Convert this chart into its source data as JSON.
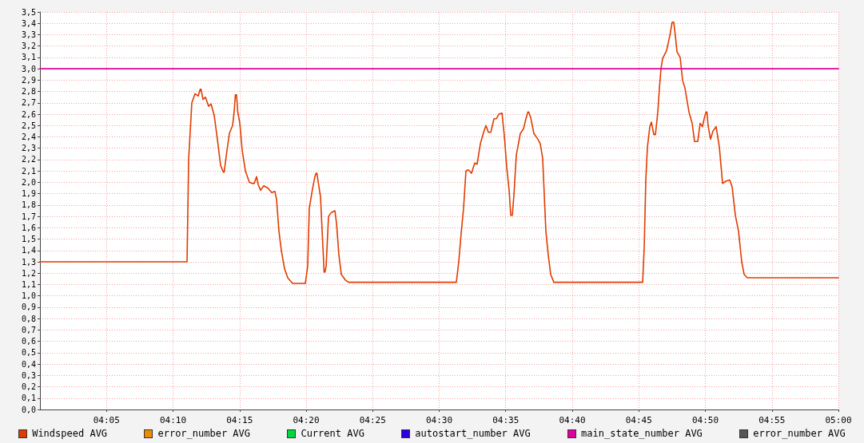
{
  "chart_data": {
    "type": "line",
    "xlim": [
      4.0,
      5.0
    ],
    "ylim": [
      0,
      3.5
    ],
    "xticks": [
      {
        "value": 4.0833,
        "label": "04:05"
      },
      {
        "value": 4.1667,
        "label": "04:10"
      },
      {
        "value": 4.25,
        "label": "04:15"
      },
      {
        "value": 4.3333,
        "label": "04:20"
      },
      {
        "value": 4.4167,
        "label": "04:25"
      },
      {
        "value": 4.5,
        "label": "04:30"
      },
      {
        "value": 4.5833,
        "label": "04:35"
      },
      {
        "value": 4.6667,
        "label": "04:40"
      },
      {
        "value": 4.75,
        "label": "04:45"
      },
      {
        "value": 4.8333,
        "label": "04:50"
      },
      {
        "value": 4.9167,
        "label": "04:55"
      },
      {
        "value": 5.0,
        "label": "05:00"
      }
    ],
    "yticks": [
      {
        "value": 0,
        "label": "0,0"
      },
      {
        "value": 0.1,
        "label": "0,1"
      },
      {
        "value": 0.2,
        "label": "0,2"
      },
      {
        "value": 0.3,
        "label": "0,3"
      },
      {
        "value": 0.4,
        "label": "0,4"
      },
      {
        "value": 0.5,
        "label": "0,5"
      },
      {
        "value": 0.6,
        "label": "0,6"
      },
      {
        "value": 0.7,
        "label": "0,7"
      },
      {
        "value": 0.8,
        "label": "0,8"
      },
      {
        "value": 0.9,
        "label": "0,9"
      },
      {
        "value": 1.0,
        "label": "1,0"
      },
      {
        "value": 1.1,
        "label": "1,1"
      },
      {
        "value": 1.2,
        "label": "1,2"
      },
      {
        "value": 1.3,
        "label": "1,3"
      },
      {
        "value": 1.4,
        "label": "1,4"
      },
      {
        "value": 1.5,
        "label": "1,5"
      },
      {
        "value": 1.6,
        "label": "1,6"
      },
      {
        "value": 1.7,
        "label": "1,7"
      },
      {
        "value": 1.8,
        "label": "1,8"
      },
      {
        "value": 1.9,
        "label": "1,9"
      },
      {
        "value": 2.0,
        "label": "2,0"
      },
      {
        "value": 2.1,
        "label": "2,1"
      },
      {
        "value": 2.2,
        "label": "2,2"
      },
      {
        "value": 2.3,
        "label": "2,3"
      },
      {
        "value": 2.4,
        "label": "2,4"
      },
      {
        "value": 2.5,
        "label": "2,5"
      },
      {
        "value": 2.6,
        "label": "2,6"
      },
      {
        "value": 2.7,
        "label": "2,7"
      },
      {
        "value": 2.8,
        "label": "2,8"
      },
      {
        "value": 2.9,
        "label": "2,9"
      },
      {
        "value": 3.0,
        "label": "3,0"
      },
      {
        "value": 3.1,
        "label": "3,1"
      },
      {
        "value": 3.2,
        "label": "3,2"
      },
      {
        "value": 3.3,
        "label": "3,3"
      },
      {
        "value": 3.4,
        "label": "3,4"
      },
      {
        "value": 3.5,
        "label": "3,5"
      }
    ],
    "grid": true,
    "legend": "bottom",
    "marker": "none",
    "line_style": "solid",
    "series": [
      {
        "name": "Windspeed AVG",
        "color": "#e03c00",
        "x": [
          4.0,
          4.1842,
          4.1862,
          4.1902,
          4.1942,
          4.1982,
          4.2007,
          4.2017,
          4.2042,
          4.2072,
          4.2112,
          4.2142,
          4.2182,
          4.2222,
          4.2262,
          4.2297,
          4.2307,
          4.2342,
          4.2372,
          4.2412,
          4.2432,
          4.2447,
          4.2462,
          4.2477,
          4.2503,
          4.2533,
          4.2573,
          4.2623,
          4.2663,
          4.2683,
          4.2713,
          4.2733,
          4.2763,
          4.2803,
          4.2853,
          4.2903,
          4.2943,
          4.2963,
          4.2993,
          4.3023,
          4.3063,
          4.3103,
          4.3163,
          4.3323,
          4.3353,
          4.3373,
          4.3413,
          4.3443,
          4.3458,
          4.3468,
          4.3483,
          4.3514,
          4.3534,
          4.3559,
          4.3569,
          4.3584,
          4.3614,
          4.3644,
          4.3664,
          4.3694,
          4.3714,
          4.3744,
          4.3774,
          4.3824,
          4.3864,
          4.5215,
          4.5245,
          4.5275,
          4.5305,
          4.5335,
          4.5365,
          4.5405,
          4.5445,
          4.5475,
          4.5516,
          4.5556,
          4.5586,
          4.5616,
          4.5646,
          4.5686,
          4.5716,
          4.5746,
          4.5786,
          4.5816,
          4.5846,
          4.5876,
          4.5896,
          4.5916,
          4.5936,
          4.5966,
          4.6016,
          4.6056,
          4.6086,
          4.6111,
          4.6121,
          4.6146,
          4.6186,
          4.6236,
          4.6266,
          4.6296,
          4.6316,
          4.6336,
          4.6366,
          4.6396,
          4.6436,
          4.7548,
          4.7568,
          4.7588,
          4.7608,
          4.7638,
          4.7658,
          4.7688,
          4.7708,
          4.7738,
          4.7758,
          4.7778,
          4.7798,
          4.7848,
          4.7888,
          4.7918,
          4.7938,
          4.7958,
          4.7978,
          4.8018,
          4.8048,
          4.8078,
          4.8128,
          4.8168,
          4.8198,
          4.8238,
          4.8268,
          4.8298,
          4.8318,
          4.8343,
          4.8353,
          4.8368,
          4.8398,
          4.8428,
          4.8468,
          4.8509,
          4.8549,
          4.8589,
          4.8639,
          4.8669,
          4.8709,
          4.8749,
          4.8789,
          4.8819,
          4.8859,
          5.0
        ],
        "values": [
          1.3,
          1.3,
          2.2,
          2.7,
          2.78,
          2.76,
          2.82,
          2.82,
          2.73,
          2.75,
          2.67,
          2.69,
          2.59,
          2.38,
          2.15,
          2.09,
          2.09,
          2.28,
          2.43,
          2.5,
          2.62,
          2.77,
          2.77,
          2.62,
          2.52,
          2.28,
          2.1,
          2.0,
          1.99,
          1.99,
          2.05,
          1.98,
          1.93,
          1.97,
          1.95,
          1.91,
          1.92,
          1.85,
          1.57,
          1.4,
          1.24,
          1.16,
          1.11,
          1.11,
          1.26,
          1.77,
          1.94,
          2.05,
          2.08,
          2.08,
          2.01,
          1.87,
          1.57,
          1.21,
          1.21,
          1.26,
          1.7,
          1.73,
          1.74,
          1.75,
          1.64,
          1.36,
          1.19,
          1.14,
          1.12,
          1.12,
          1.3,
          1.55,
          1.77,
          2.1,
          2.11,
          2.08,
          2.17,
          2.16,
          2.34,
          2.44,
          2.5,
          2.44,
          2.44,
          2.56,
          2.56,
          2.6,
          2.61,
          2.41,
          2.13,
          1.93,
          1.71,
          1.71,
          1.89,
          2.24,
          2.43,
          2.47,
          2.56,
          2.62,
          2.62,
          2.57,
          2.43,
          2.38,
          2.34,
          2.21,
          1.89,
          1.57,
          1.36,
          1.19,
          1.12,
          1.12,
          1.43,
          2.03,
          2.31,
          2.49,
          2.53,
          2.42,
          2.42,
          2.62,
          2.83,
          3.0,
          3.09,
          3.16,
          3.29,
          3.41,
          3.41,
          3.29,
          3.15,
          3.1,
          2.9,
          2.83,
          2.62,
          2.52,
          2.36,
          2.36,
          2.52,
          2.49,
          2.56,
          2.62,
          2.62,
          2.5,
          2.38,
          2.45,
          2.49,
          2.31,
          1.99,
          2.01,
          2.02,
          1.96,
          1.71,
          1.57,
          1.3,
          1.19,
          1.16,
          1.16
        ]
      },
      {
        "name": "error_number AVG",
        "color": "#ec8a00"
      },
      {
        "name": "Current AVG",
        "color": "#00d840"
      },
      {
        "name": "autostart_number AVG",
        "color": "#2a00e0"
      },
      {
        "name": "main_state_number AVG",
        "color": "#e0009c",
        "x": [
          4.0,
          5.0
        ],
        "values": [
          3.0,
          3.0
        ]
      },
      {
        "name": "error_number AVG",
        "color": "#555555"
      }
    ]
  }
}
